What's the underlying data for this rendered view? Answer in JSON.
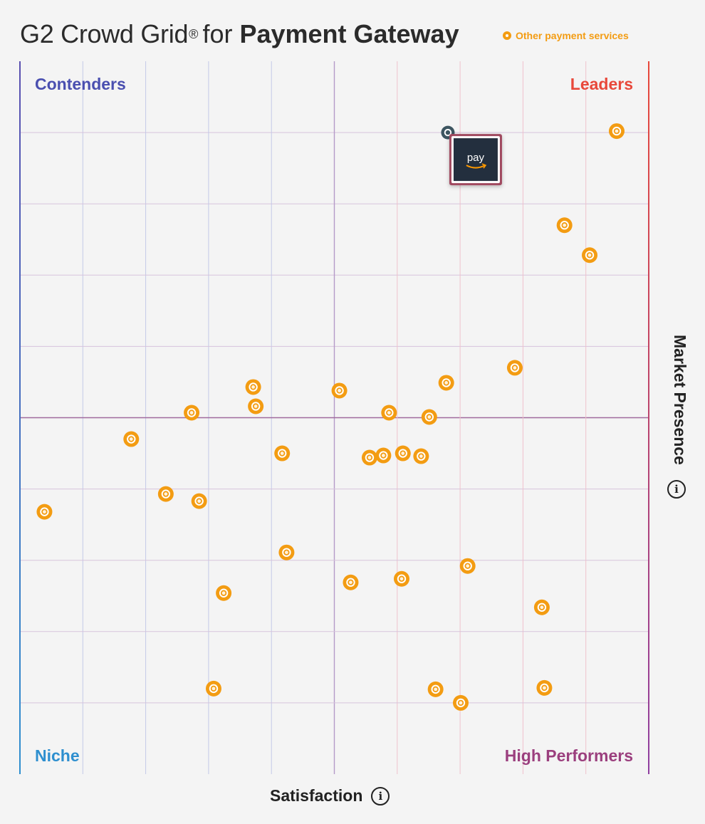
{
  "header": {
    "title_prefix": "G2 Crowd Grid",
    "registered": "®",
    "title_mid": "for",
    "title_bold": "Payment Gateway"
  },
  "legend": {
    "label": "Other payment services",
    "color": "#f39c12"
  },
  "colors": {
    "contenders": "#4a4fb0",
    "leaders": "#e8483a",
    "niche": "#2e8fcf",
    "high_performers": "#9b3f7e",
    "point": "#f39c12",
    "highlight_marker": "#3d5560",
    "highlight_bg": "#232f3e",
    "highlight_border": "#a0485f"
  },
  "chart_data": {
    "type": "scatter",
    "title": "G2 Crowd Grid® for Payment Gateway",
    "xlabel": "Satisfaction",
    "ylabel": "Market Presence",
    "xlim": [
      0,
      100
    ],
    "ylim": [
      0,
      100
    ],
    "grid": true,
    "quadrants": {
      "top_left": "Contenders",
      "top_right": "Leaders",
      "bottom_left": "Niche",
      "bottom_right": "High Performers"
    },
    "highlight": {
      "name": "pay",
      "x": 68,
      "y": 90
    },
    "series": [
      {
        "name": "Other payment services",
        "points": [
          [
            94.9,
            90.2
          ],
          [
            86.6,
            77
          ],
          [
            90.6,
            72.8
          ],
          [
            78.7,
            57
          ],
          [
            50.8,
            53.8
          ],
          [
            37.1,
            54.3
          ],
          [
            37.5,
            51.6
          ],
          [
            27.3,
            50.7
          ],
          [
            58.7,
            50.7
          ],
          [
            67.8,
            54.9
          ],
          [
            65.1,
            50.1
          ],
          [
            17.7,
            47
          ],
          [
            41.7,
            45
          ],
          [
            55.6,
            44.4
          ],
          [
            57.8,
            44.7
          ],
          [
            60.9,
            45
          ],
          [
            63.8,
            44.6
          ],
          [
            23.2,
            39.3
          ],
          [
            28.5,
            38.3
          ],
          [
            3.9,
            36.8
          ],
          [
            42.4,
            31.1
          ],
          [
            71.2,
            29.2
          ],
          [
            32.4,
            25.4
          ],
          [
            52.6,
            26.9
          ],
          [
            60.7,
            27.4
          ],
          [
            83,
            23.4
          ],
          [
            30.8,
            12
          ],
          [
            66.1,
            11.9
          ],
          [
            83.4,
            12.1
          ],
          [
            70.1,
            10
          ]
        ]
      }
    ]
  }
}
